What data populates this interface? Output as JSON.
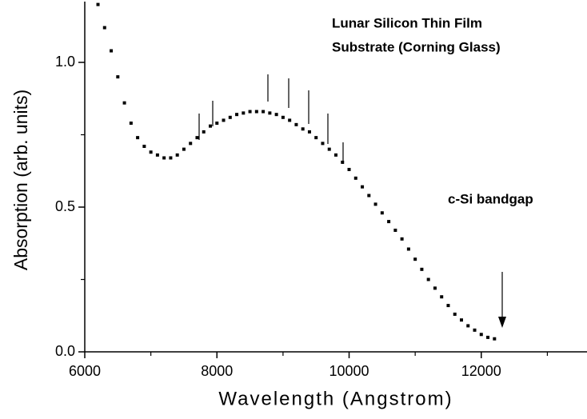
{
  "chart_data": {
    "type": "scatter",
    "annotations": [
      "Lunar Silicon Thin Film",
      "Substrate (Corning Glass)",
      "c-Si bandgap"
    ],
    "xlabel": "Wavelength (Angstrom)",
    "ylabel": "Absorption (arb. units)",
    "color": "#000000",
    "x": [
      6200,
      6300,
      6400,
      6500,
      6600,
      6700,
      6800,
      6900,
      7000,
      7100,
      7200,
      7300,
      7400,
      7500,
      7600,
      7700,
      7800,
      7900,
      8000,
      8100,
      8200,
      8300,
      8400,
      8500,
      8600,
      8700,
      8800,
      8900,
      9000,
      9100,
      9200,
      9300,
      9400,
      9500,
      9600,
      9700,
      9800,
      9900,
      10000,
      10100,
      10200,
      10300,
      10400,
      10500,
      10600,
      10700,
      10800,
      10900,
      11000,
      11100,
      11200,
      11300,
      11400,
      11500,
      11600,
      11700,
      11800,
      11900,
      12000,
      12100,
      12200
    ],
    "values": [
      1.2,
      1.12,
      1.04,
      0.95,
      0.86,
      0.79,
      0.74,
      0.71,
      0.69,
      0.68,
      0.67,
      0.67,
      0.68,
      0.7,
      0.72,
      0.74,
      0.76,
      0.78,
      0.79,
      0.8,
      0.81,
      0.82,
      0.825,
      0.83,
      0.83,
      0.83,
      0.825,
      0.82,
      0.81,
      0.8,
      0.785,
      0.77,
      0.76,
      0.74,
      0.72,
      0.7,
      0.68,
      0.655,
      0.63,
      0.6,
      0.57,
      0.54,
      0.51,
      0.48,
      0.45,
      0.42,
      0.39,
      0.355,
      0.32,
      0.285,
      0.25,
      0.22,
      0.19,
      0.16,
      0.13,
      0.11,
      0.09,
      0.075,
      0.06,
      0.05,
      0.045
    ],
    "xlim": [
      6000,
      13600
    ],
    "ylim": [
      0,
      1.21
    ],
    "xticks": [
      6000,
      8000,
      10000,
      12000
    ],
    "x_minor_ticks": [
      7000,
      9000,
      11000,
      13000
    ],
    "yticks": [
      {
        "value": 0,
        "label": "0.0"
      },
      {
        "value": 0.5,
        "label": "0.5"
      },
      {
        "value": 1,
        "label": "1.0"
      }
    ],
    "y_minor_ticks": [
      0.25,
      0.75
    ]
  }
}
